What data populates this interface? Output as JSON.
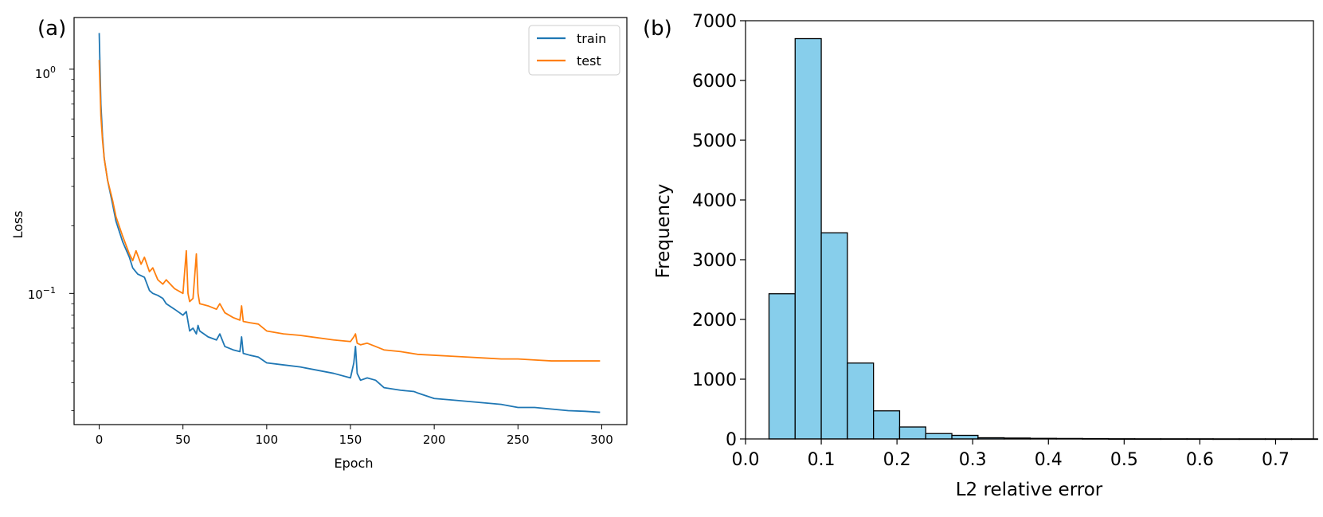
{
  "panels": {
    "a": {
      "label": "(a)"
    },
    "b": {
      "label": "(b)"
    }
  },
  "chart_data": [
    {
      "type": "line",
      "panel": "(a)",
      "title": "",
      "xlabel": "Epoch",
      "ylabel": "Loss",
      "yscale": "log",
      "xlim": [
        -15,
        315
      ],
      "ylim": [
        0.026,
        1.7
      ],
      "xticks": [
        0,
        50,
        100,
        150,
        200,
        250,
        300
      ],
      "xtick_labels": [
        "0",
        "50",
        "100",
        "150",
        "200",
        "250",
        "300"
      ],
      "ytick_labels": [
        "10^0",
        "10^-1"
      ],
      "legend": {
        "placement": "top-right",
        "entries": [
          "train",
          "test"
        ]
      },
      "colors": {
        "train": "#1f77b4",
        "test": "#ff7f0e"
      },
      "series": [
        {
          "name": "train",
          "x": [
            0,
            1,
            2,
            3,
            5,
            8,
            10,
            14,
            18,
            20,
            23,
            25,
            27,
            30,
            32,
            35,
            38,
            40,
            45,
            50,
            52,
            53,
            54,
            56,
            58,
            59,
            60,
            65,
            70,
            72,
            75,
            80,
            84,
            85,
            86,
            90,
            95,
            100,
            110,
            120,
            140,
            150,
            152,
            153,
            154,
            156,
            160,
            165,
            170,
            180,
            188,
            190,
            200,
            210,
            220,
            230,
            240,
            250,
            260,
            270,
            280,
            290,
            299
          ],
          "values": [
            1.45,
            0.7,
            0.5,
            0.4,
            0.32,
            0.25,
            0.21,
            0.17,
            0.145,
            0.13,
            0.122,
            0.12,
            0.118,
            0.103,
            0.1,
            0.098,
            0.095,
            0.09,
            0.085,
            0.08,
            0.083,
            0.075,
            0.068,
            0.07,
            0.066,
            0.072,
            0.068,
            0.064,
            0.062,
            0.066,
            0.058,
            0.056,
            0.055,
            0.064,
            0.054,
            0.053,
            0.052,
            0.049,
            0.048,
            0.047,
            0.044,
            0.042,
            0.049,
            0.058,
            0.044,
            0.041,
            0.042,
            0.041,
            0.038,
            0.037,
            0.0365,
            0.036,
            0.034,
            0.0335,
            0.033,
            0.0325,
            0.032,
            0.031,
            0.031,
            0.0305,
            0.03,
            0.0298,
            0.0295
          ]
        },
        {
          "name": "test",
          "x": [
            0,
            1,
            2,
            3,
            5,
            8,
            10,
            14,
            18,
            20,
            22,
            25,
            27,
            30,
            32,
            35,
            38,
            40,
            45,
            50,
            52,
            53,
            54,
            56,
            58,
            59,
            60,
            65,
            70,
            72,
            75,
            80,
            84,
            85,
            86,
            90,
            95,
            100,
            110,
            120,
            140,
            150,
            152,
            153,
            154,
            156,
            160,
            165,
            170,
            180,
            190,
            200,
            210,
            220,
            230,
            240,
            250,
            260,
            270,
            280,
            290,
            299
          ],
          "values": [
            1.1,
            0.62,
            0.48,
            0.4,
            0.32,
            0.26,
            0.22,
            0.18,
            0.15,
            0.14,
            0.155,
            0.135,
            0.145,
            0.125,
            0.13,
            0.115,
            0.11,
            0.115,
            0.105,
            0.1,
            0.155,
            0.1,
            0.092,
            0.095,
            0.15,
            0.1,
            0.09,
            0.088,
            0.085,
            0.09,
            0.082,
            0.078,
            0.076,
            0.088,
            0.075,
            0.074,
            0.073,
            0.068,
            0.066,
            0.065,
            0.062,
            0.061,
            0.064,
            0.066,
            0.06,
            0.059,
            0.06,
            0.058,
            0.056,
            0.055,
            0.0535,
            0.053,
            0.0525,
            0.052,
            0.0515,
            0.051,
            0.051,
            0.0505,
            0.05,
            0.05,
            0.05,
            0.05
          ]
        }
      ]
    },
    {
      "type": "bar",
      "subtype": "histogram",
      "panel": "(b)",
      "title": "",
      "xlabel": "L2 relative error",
      "ylabel": "Frequency",
      "xlim": [
        0.0,
        0.75
      ],
      "ylim": [
        0,
        7000
      ],
      "xticks": [
        0.0,
        0.1,
        0.2,
        0.3,
        0.4,
        0.5,
        0.6,
        0.7
      ],
      "xtick_labels": [
        "0.0",
        "0.1",
        "0.2",
        "0.3",
        "0.4",
        "0.5",
        "0.6",
        "0.7"
      ],
      "yticks": [
        0,
        1000,
        2000,
        3000,
        4000,
        5000,
        6000,
        7000
      ],
      "ytick_labels": [
        "0",
        "1000",
        "2000",
        "3000",
        "4000",
        "5000",
        "6000",
        "7000"
      ],
      "bin_width": 0.0345,
      "bin_edges_start": 0.031,
      "values": [
        2430,
        6700,
        3450,
        1270,
        470,
        200,
        90,
        60,
        20,
        15,
        10,
        8,
        6,
        3,
        2,
        2,
        2,
        1,
        1,
        1,
        1
      ],
      "colors": {
        "fill": "#87ceeb",
        "edge": "#000000"
      }
    }
  ]
}
